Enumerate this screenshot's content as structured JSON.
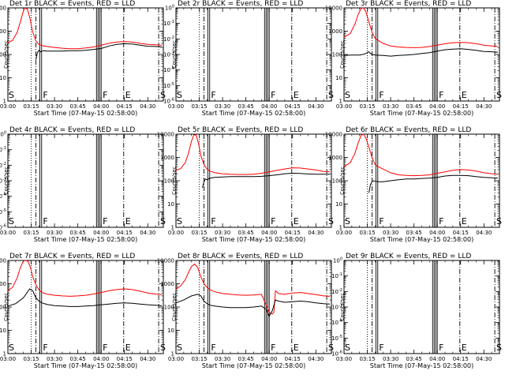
{
  "chart_data": {
    "type": "line",
    "x_tick_labels": [
      "03:00",
      "03:15",
      "03:30",
      "03:45",
      "04:00",
      "04:15",
      "04:30"
    ],
    "x_range_minutes": [
      0,
      100
    ],
    "x_tick_minutes": [
      0,
      15,
      30,
      45,
      60,
      75,
      90
    ],
    "xlabel": "Start Time (07-May-15 02:58:00)",
    "ylabel": "Counts/sec",
    "event_lines": [
      {
        "minute": 15,
        "style": "dotted"
      },
      {
        "minute": 18,
        "style": "dashdot"
      },
      {
        "minute": 20.5,
        "style": "solid"
      },
      {
        "minute": 21.7,
        "style": "solid"
      },
      {
        "minute": 57,
        "style": "solid"
      },
      {
        "minute": 58,
        "style": "solid"
      },
      {
        "minute": 59,
        "style": "solid"
      },
      {
        "minute": 60,
        "style": "solid"
      },
      {
        "minute": 74.5,
        "style": "dashdot"
      },
      {
        "minute": 97,
        "style": "dashdot"
      }
    ],
    "event_markers": [
      {
        "minute": 0.5,
        "text": "S"
      },
      {
        "minute": 22.5,
        "text": "F"
      },
      {
        "minute": 61,
        "text": "F"
      },
      {
        "minute": 75.5,
        "text": "E"
      },
      {
        "minute": 98,
        "text": "S"
      }
    ],
    "panels": [
      {
        "title": "Det 1r BLACK = Events, RED = LLD",
        "y_scale": "log",
        "y_tick_labels": [
          "1",
          "10",
          "100",
          "1000",
          "10000"
        ],
        "y_tick_values": [
          1,
          10,
          100,
          1000,
          10000
        ],
        "ylim": [
          1,
          10000
        ],
        "series": [
          {
            "color": "#ff0000",
            "x": [
              0,
              3,
              6,
              8,
              10,
              11,
              12.5,
              14,
              16,
              18,
              20,
              22,
              25,
              30,
              35,
              40,
              45,
              50,
              55,
              60,
              65,
              70,
              75,
              80,
              85,
              90,
              95,
              99
            ],
            "y": [
              320,
              400,
              900,
              2500,
              7500,
              9800,
              9000,
              4000,
              900,
              380,
              270,
              240,
              220,
              200,
              185,
              175,
              175,
              190,
              210,
              250,
              300,
              340,
              360,
              340,
              300,
              270,
              260,
              250
            ]
          },
          {
            "color": "#000000",
            "x": [
              18,
              19,
              20,
              21,
              22,
              23,
              25,
              30,
              35,
              40,
              45,
              50,
              55,
              60,
              65,
              70,
              75,
              80,
              85,
              90,
              95,
              99
            ],
            "y": [
              60,
              120,
              150,
              130,
              140,
              145,
              140,
              140,
              140,
              145,
              145,
              150,
              165,
              180,
              230,
              270,
              290,
              280,
              250,
              225,
              220,
              210
            ]
          }
        ]
      },
      {
        "title": "Det 2r BLACK = Events, RED = LLD",
        "y_scale": "log",
        "y_tick_labels": [
          "10^0",
          "10^-1",
          "10^-2",
          "10^-3",
          "10^-4",
          "10^-5",
          "10^-6"
        ],
        "y_tick_values": [
          1,
          0.1,
          0.01,
          0.001,
          0.0001,
          1e-05,
          1e-06
        ],
        "ylim": [
          1,
          1e-06
        ],
        "series": []
      },
      {
        "title": "Det 3r BLACK = Events, RED = LLD",
        "y_scale": "log",
        "y_tick_labels": [
          "1",
          "10",
          "100",
          "1000",
          "10000"
        ],
        "y_tick_values": [
          1,
          10,
          100,
          1000,
          10000
        ],
        "ylim": [
          1,
          10000
        ],
        "series": [
          {
            "color": "#ff0000",
            "x": [
              0,
              4,
              7,
              9,
              11,
              12.5,
              14,
              16,
              18,
              20,
              22,
              25,
              30,
              35,
              40,
              45,
              50,
              55,
              60,
              65,
              70,
              75,
              80,
              85,
              90,
              95,
              99
            ],
            "y": [
              550,
              800,
              2000,
              5000,
              9500,
              10000,
              7000,
              2500,
              900,
              500,
              400,
              300,
              230,
              210,
              200,
              195,
              200,
              220,
              250,
              290,
              320,
              330,
              320,
              290,
              250,
              230,
              220
            ]
          },
          {
            "color": "#000000",
            "x": [
              0,
              5,
              10,
              12,
              14,
              15,
              16,
              17,
              18,
              20,
              25,
              30,
              35,
              40,
              45,
              50,
              55,
              60,
              65,
              70,
              75,
              80,
              85,
              90,
              95,
              99
            ],
            "y": [
              90,
              95,
              95,
              100,
              110,
              120,
              130,
              110,
              100,
              95,
              90,
              85,
              90,
              95,
              100,
              110,
              120,
              140,
              160,
              170,
              175,
              165,
              150,
              135,
              130,
              125
            ]
          }
        ]
      },
      {
        "title": "Det 4r BLACK = Events, RED = LLD",
        "y_scale": "log",
        "y_tick_labels": [
          "10^0",
          "10^-1",
          "10^-2",
          "10^-3",
          "10^-4",
          "10^-5",
          "10^-6"
        ],
        "y_tick_values": [
          1,
          0.1,
          0.01,
          0.001,
          0.0001,
          1e-05,
          1e-06
        ],
        "ylim": [
          1,
          1e-06
        ],
        "series": []
      },
      {
        "title": "Det 5r BLACK = Events, RED = LLD",
        "y_scale": "log",
        "y_tick_labels": [
          "1",
          "10",
          "100",
          "1000",
          "10000"
        ],
        "y_tick_values": [
          1,
          10,
          100,
          1000,
          10000
        ],
        "ylim": [
          1,
          10000
        ],
        "series": [
          {
            "color": "#ff0000",
            "x": [
              0,
              3,
              6,
              8,
              10,
              11.5,
              13,
              14.5,
              16,
              18,
              20,
              22,
              25,
              30,
              35,
              40,
              45,
              50,
              55,
              60,
              65,
              70,
              75,
              80,
              85,
              90,
              95,
              99
            ],
            "y": [
              280,
              330,
              600,
              1500,
              5000,
              9500,
              9000,
              4000,
              1200,
              500,
              320,
              260,
              220,
              200,
              190,
              185,
              185,
              190,
              210,
              240,
              280,
              320,
              360,
              350,
              320,
              290,
              250,
              240
            ]
          },
          {
            "color": "#000000",
            "x": [
              17,
              18,
              19,
              20,
              21,
              22,
              25,
              30,
              35,
              40,
              45,
              50,
              55,
              60,
              65,
              70,
              75,
              80,
              85,
              90,
              95,
              99
            ],
            "y": [
              50,
              90,
              120,
              110,
              120,
              130,
              140,
              145,
              150,
              150,
              150,
              150,
              155,
              165,
              180,
              200,
              210,
              205,
              195,
              190,
              190,
              190
            ]
          }
        ]
      },
      {
        "title": "Det 6r BLACK = Events, RED = LLD",
        "y_scale": "log",
        "y_tick_labels": [
          "1",
          "10",
          "100",
          "1000",
          "10000"
        ],
        "y_tick_values": [
          1,
          10,
          100,
          1000,
          10000
        ],
        "ylim": [
          1,
          10000
        ],
        "series": [
          {
            "color": "#ff0000",
            "x": [
              0,
              4,
              7,
              9,
              11,
              12.5,
              14,
              16,
              18,
              20,
              22,
              25,
              30,
              35,
              40,
              45,
              50,
              55,
              60,
              65,
              70,
              75,
              80,
              85,
              90,
              95,
              99
            ],
            "y": [
              400,
              600,
              1500,
              4000,
              9000,
              10000,
              7000,
              2800,
              1000,
              500,
              400,
              320,
              220,
              180,
              170,
              165,
              170,
              180,
              210,
              240,
              280,
              300,
              290,
              260,
              220,
              200,
              190
            ]
          },
          {
            "color": "#000000",
            "x": [
              16,
              17,
              18,
              19,
              20,
              22,
              25,
              30,
              35,
              40,
              45,
              50,
              55,
              60,
              65,
              70,
              75,
              80,
              85,
              90,
              95,
              99
            ],
            "y": [
              30,
              70,
              90,
              100,
              95,
              90,
              90,
              100,
              110,
              120,
              120,
              125,
              130,
              140,
              160,
              170,
              170,
              165,
              150,
              140,
              135,
              130
            ]
          }
        ]
      },
      {
        "title": "Det 7r BLACK = Events, RED = LLD",
        "y_scale": "log",
        "y_tick_labels": [
          "1",
          "10",
          "100",
          "1000",
          "10000"
        ],
        "y_tick_values": [
          1,
          10,
          100,
          1000,
          10000
        ],
        "ylim": [
          1,
          10000
        ],
        "series": [
          {
            "color": "#ff0000",
            "x": [
              0,
              3,
              6,
              8,
              10,
              11.5,
              13,
              14.5,
              16,
              18,
              20,
              22,
              25,
              30,
              35,
              40,
              45,
              50,
              55,
              60,
              65,
              70,
              75,
              80,
              85,
              90,
              95,
              99
            ],
            "y": [
              500,
              700,
              1800,
              5000,
              9500,
              10000,
              9000,
              5000,
              2000,
              900,
              550,
              420,
              360,
              320,
              300,
              290,
              300,
              320,
              360,
              420,
              500,
              560,
              600,
              560,
              480,
              400,
              360,
              340
            ]
          },
          {
            "color": "#000000",
            "x": [
              0,
              5,
              10,
              14,
              16,
              18,
              20,
              22,
              25,
              30,
              35,
              40,
              45,
              50,
              55,
              60,
              65,
              70,
              75,
              80,
              85,
              90,
              95,
              99
            ],
            "y": [
              110,
              140,
              250,
              600,
              500,
              250,
              180,
              150,
              130,
              115,
              110,
              105,
              105,
              110,
              115,
              125,
              135,
              145,
              150,
              145,
              135,
              125,
              120,
              115
            ]
          }
        ]
      },
      {
        "title": "Det 8r BLACK = Events, RED = LLD",
        "y_scale": "log",
        "y_tick_labels": [
          "1",
          "10",
          "100",
          "1000",
          "10000"
        ],
        "y_tick_values": [
          1,
          10,
          100,
          1000,
          10000
        ],
        "ylim": [
          1,
          10000
        ],
        "series": [
          {
            "color": "#ff0000",
            "x": [
              0,
              3,
              6,
              8,
              10,
              12,
              14,
              16,
              18,
              20,
              22,
              25,
              30,
              35,
              40,
              45,
              50,
              55,
              58,
              60,
              61,
              62,
              63,
              64,
              66,
              70,
              75,
              80,
              85,
              90,
              95,
              99
            ],
            "y": [
              600,
              800,
              1500,
              3000,
              5500,
              7000,
              5000,
              2000,
              1000,
              700,
              550,
              450,
              380,
              350,
              330,
              320,
              330,
              350,
              120,
              60,
              55,
              50,
              60,
              500,
              380,
              350,
              400,
              420,
              380,
              340,
              300,
              290
            ]
          },
          {
            "color": "#000000",
            "x": [
              0,
              5,
              10,
              14,
              16,
              18,
              20,
              22,
              25,
              30,
              35,
              40,
              45,
              50,
              55,
              58,
              60,
              62,
              64,
              66,
              70,
              75,
              80,
              85,
              90,
              95,
              99
            ],
            "y": [
              150,
              200,
              300,
              350,
              300,
              180,
              140,
              120,
              110,
              100,
              95,
              95,
              95,
              100,
              110,
              80,
              40,
              70,
              200,
              180,
              160,
              170,
              180,
              170,
              150,
              140,
              135
            ]
          }
        ]
      },
      {
        "title": "Det 9r BLACK = Events, RED = LLD",
        "y_scale": "log",
        "y_tick_labels": [
          "10^0",
          "10^-1",
          "10^-2",
          "10^-3",
          "10^-4",
          "10^-5",
          "10^-6"
        ],
        "y_tick_values": [
          1,
          0.1,
          0.01,
          0.001,
          0.0001,
          1e-05,
          1e-06
        ],
        "ylim": [
          1,
          1e-06
        ],
        "series": []
      }
    ]
  }
}
